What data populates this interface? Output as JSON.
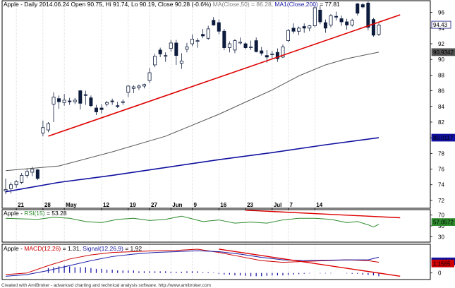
{
  "chart_data": [
    {
      "type": "candlestick",
      "title_parts": [
        {
          "text": "Apple - Daily 2014.06.24  Open 90.75, Hi 91.74, Lo 90.19, Close 90.28 (-0.6%)",
          "color": "#000000"
        },
        {
          "text": "MA(Close,50) = 86.28,",
          "color": "#808080"
        },
        {
          "text": "MA1(Close,200)",
          "color": "#1a1aa6"
        },
        {
          "text": "= 77.81",
          "color": "#000000"
        }
      ],
      "x_tick_labels": [
        {
          "i": 2,
          "label": "21"
        },
        {
          "i": 7,
          "label": "28"
        },
        {
          "i": 11,
          "label": "May"
        },
        {
          "i": 18,
          "label": "12"
        },
        {
          "i": 23,
          "label": "19"
        },
        {
          "i": 27,
          "label": "27"
        },
        {
          "i": 31,
          "label": "Jun"
        },
        {
          "i": 35,
          "label": "9"
        },
        {
          "i": 40,
          "label": "16"
        },
        {
          "i": 45,
          "label": "23"
        },
        {
          "i": 50,
          "label": "Jul"
        },
        {
          "i": 53,
          "label": "7"
        },
        {
          "i": 58,
          "label": "14"
        }
      ],
      "y_ticks": [
        72,
        74,
        76,
        78,
        80,
        82,
        84,
        86,
        88,
        90,
        92,
        94,
        96
      ],
      "ylim": [
        71,
        97.5
      ],
      "last_value_labels": [
        {
          "value": 94.43,
          "text": "94.43",
          "bg": "#ffffff",
          "border": "#1a1a80"
        },
        {
          "value": 90.9342,
          "text": "90.9342",
          "bg": "#555555",
          "fg": "#ffffff"
        },
        {
          "value": 80.0117,
          "text": "80.0117",
          "bg": "#1010a0",
          "fg": "#ffffff"
        }
      ],
      "candles": [
        {
          "o": 73.2,
          "h": 74.8,
          "l": 72.8,
          "c": 73.4
        },
        {
          "o": 73.5,
          "h": 74.3,
          "l": 72.9,
          "c": 74.0
        },
        {
          "o": 74.0,
          "h": 74.6,
          "l": 73.6,
          "c": 74.4
        },
        {
          "o": 74.3,
          "h": 75.5,
          "l": 74.1,
          "c": 75.2
        },
        {
          "o": 75.2,
          "h": 76.1,
          "l": 74.9,
          "c": 75.7
        },
        {
          "o": 75.6,
          "h": 76.3,
          "l": 75.1,
          "c": 76.0
        },
        {
          "o": 75.9,
          "h": 76.0,
          "l": 74.6,
          "c": 74.8
        },
        {
          "o": 80.6,
          "h": 82.2,
          "l": 80.2,
          "c": 81.3
        },
        {
          "o": 81.0,
          "h": 82.0,
          "l": 80.7,
          "c": 81.8
        },
        {
          "o": 84.3,
          "h": 85.8,
          "l": 82.0,
          "c": 85.2
        },
        {
          "o": 85.0,
          "h": 85.4,
          "l": 83.7,
          "c": 84.6
        },
        {
          "o": 84.5,
          "h": 85.6,
          "l": 84.1,
          "c": 84.8
        },
        {
          "o": 84.7,
          "h": 85.1,
          "l": 84.2,
          "c": 84.6
        },
        {
          "o": 84.6,
          "h": 85.1,
          "l": 84.3,
          "c": 84.8
        },
        {
          "o": 86.0,
          "h": 86.1,
          "l": 83.6,
          "c": 84.4
        },
        {
          "o": 85.5,
          "h": 86.0,
          "l": 84.2,
          "c": 85.4
        },
        {
          "o": 85.1,
          "h": 85.4,
          "l": 83.9,
          "c": 84.1
        },
        {
          "o": 83.8,
          "h": 84.2,
          "l": 82.9,
          "c": 83.3
        },
        {
          "o": 83.8,
          "h": 84.3,
          "l": 83.1,
          "c": 83.6
        },
        {
          "o": 84.3,
          "h": 84.7,
          "l": 84.0,
          "c": 84.5
        },
        {
          "o": 84.7,
          "h": 85.0,
          "l": 84.2,
          "c": 84.6
        },
        {
          "o": 84.1,
          "h": 84.6,
          "l": 83.8,
          "c": 84.0
        },
        {
          "o": 84.5,
          "h": 84.9,
          "l": 84.2,
          "c": 84.6
        },
        {
          "o": 85.8,
          "h": 86.7,
          "l": 85.2,
          "c": 86.6
        },
        {
          "o": 86.3,
          "h": 86.7,
          "l": 85.7,
          "c": 86.5
        },
        {
          "o": 86.4,
          "h": 86.8,
          "l": 86.1,
          "c": 86.6
        },
        {
          "o": 86.6,
          "h": 86.9,
          "l": 86.3,
          "c": 86.8
        },
        {
          "o": 87.3,
          "h": 88.9,
          "l": 87.0,
          "c": 88.3
        },
        {
          "o": 89.3,
          "h": 90.7,
          "l": 89.0,
          "c": 90.4
        },
        {
          "o": 91.2,
          "h": 91.5,
          "l": 90.3,
          "c": 90.7
        },
        {
          "o": 90.4,
          "h": 90.9,
          "l": 89.7,
          "c": 90.5
        },
        {
          "o": 91.4,
          "h": 92.5,
          "l": 91.0,
          "c": 92.1
        },
        {
          "o": 92.1,
          "h": 92.5,
          "l": 89.3,
          "c": 90.5
        },
        {
          "o": 89.5,
          "h": 90.8,
          "l": 88.8,
          "c": 89.8
        },
        {
          "o": 91.3,
          "h": 92.1,
          "l": 90.9,
          "c": 91.6
        },
        {
          "o": 92.0,
          "h": 93.2,
          "l": 91.7,
          "c": 92.6
        },
        {
          "o": 92.3,
          "h": 92.7,
          "l": 91.5,
          "c": 92.4
        },
        {
          "o": 93.2,
          "h": 93.9,
          "l": 92.7,
          "c": 93.0
        },
        {
          "o": 92.7,
          "h": 94.3,
          "l": 92.5,
          "c": 93.9
        },
        {
          "o": 95.0,
          "h": 95.4,
          "l": 94.3,
          "c": 94.4
        },
        {
          "o": 94.7,
          "h": 95.1,
          "l": 93.2,
          "c": 93.6
        },
        {
          "o": 93.6,
          "h": 93.9,
          "l": 91.2,
          "c": 91.5
        },
        {
          "o": 91.5,
          "h": 92.3,
          "l": 90.9,
          "c": 92.0
        },
        {
          "o": 91.2,
          "h": 92.6,
          "l": 90.8,
          "c": 92.4
        },
        {
          "o": 92.1,
          "h": 92.8,
          "l": 91.9,
          "c": 92.2
        },
        {
          "o": 92.0,
          "h": 92.2,
          "l": 91.3,
          "c": 91.5
        },
        {
          "o": 91.5,
          "h": 92.4,
          "l": 91.2,
          "c": 91.6
        },
        {
          "o": 92.4,
          "h": 92.8,
          "l": 90.9,
          "c": 91.0
        },
        {
          "o": 91.1,
          "h": 91.6,
          "l": 90.5,
          "c": 90.8
        },
        {
          "o": 90.5,
          "h": 91.2,
          "l": 89.6,
          "c": 90.3
        },
        {
          "o": 90.6,
          "h": 91.1,
          "l": 90.1,
          "c": 90.7
        },
        {
          "o": 90.9,
          "h": 91.4,
          "l": 89.7,
          "c": 90.1
        },
        {
          "o": 90.3,
          "h": 91.9,
          "l": 90.2,
          "c": 91.6
        },
        {
          "o": 92.4,
          "h": 93.9,
          "l": 92.2,
          "c": 93.7
        },
        {
          "o": 94.0,
          "h": 94.6,
          "l": 93.3,
          "c": 93.6
        },
        {
          "o": 93.6,
          "h": 94.2,
          "l": 93.1,
          "c": 94.0
        },
        {
          "o": 94.2,
          "h": 94.6,
          "l": 93.4,
          "c": 94.0
        },
        {
          "o": 94.0,
          "h": 94.4,
          "l": 93.6,
          "c": 94.3
        },
        {
          "o": 94.3,
          "h": 96.9,
          "l": 94.1,
          "c": 96.6
        },
        {
          "o": 96.3,
          "h": 96.8,
          "l": 94.5,
          "c": 94.8
        },
        {
          "o": 94.7,
          "h": 95.1,
          "l": 93.4,
          "c": 94.0
        },
        {
          "o": 94.4,
          "h": 95.8,
          "l": 94.1,
          "c": 95.6
        },
        {
          "o": 95.5,
          "h": 96.1,
          "l": 95.0,
          "c": 95.4
        },
        {
          "o": 95.2,
          "h": 95.6,
          "l": 94.3,
          "c": 94.8
        },
        {
          "o": 94.8,
          "h": 95.2,
          "l": 93.8,
          "c": 94.4
        },
        {
          "o": 94.4,
          "h": 95.2,
          "l": 94.2,
          "c": 95.0
        },
        {
          "o": 97.1,
          "h": 97.2,
          "l": 95.6,
          "c": 95.9
        },
        {
          "o": 97.0,
          "h": 97.2,
          "l": 96.5,
          "c": 96.7
        },
        {
          "o": 97.2,
          "h": 97.4,
          "l": 93.7,
          "c": 94.1
        },
        {
          "o": 95.1,
          "h": 95.3,
          "l": 92.9,
          "c": 93.1
        },
        {
          "o": 93.2,
          "h": 94.6,
          "l": 93.0,
          "c": 94.4
        }
      ],
      "ma50": [
        [
          0,
          75.8
        ],
        [
          10,
          76.4
        ],
        [
          20,
          78.2
        ],
        [
          30,
          80.2
        ],
        [
          40,
          83.0
        ],
        [
          50,
          86.1
        ],
        [
          55,
          87.9
        ],
        [
          60,
          89.3
        ],
        [
          64,
          90.1
        ],
        [
          70,
          90.93
        ]
      ],
      "ma200": [
        [
          0,
          73.1
        ],
        [
          10,
          74.3
        ],
        [
          20,
          75.2
        ],
        [
          30,
          76.2
        ],
        [
          40,
          77.2
        ],
        [
          50,
          78.1
        ],
        [
          60,
          79.1
        ],
        [
          70,
          80.01
        ]
      ],
      "trendline": [
        [
          8,
          80.2
        ],
        [
          74,
          95.7
        ]
      ]
    },
    {
      "type": "line",
      "title_parts": [
        {
          "text": "Apple -",
          "color": "#000000"
        },
        {
          "text": "RSI(15)",
          "color": "#2e8b2e"
        },
        {
          "text": "= 53.28",
          "color": "#000000"
        }
      ],
      "y_ticks": [
        30,
        50,
        70
      ],
      "ylim": [
        20,
        80
      ],
      "last_value_labels": [
        {
          "value": 57.0572,
          "text": "57.0572",
          "bg": "#2e8b2e",
          "fg": "#ffffff"
        }
      ],
      "series": [
        {
          "values": [
            [
              0,
              64
            ],
            [
              3,
              63
            ],
            [
              6,
              62
            ],
            [
              9,
              66
            ],
            [
              12,
              64
            ],
            [
              15,
              58
            ],
            [
              18,
              56
            ],
            [
              21,
              62
            ],
            [
              24,
              64
            ],
            [
              27,
              60
            ],
            [
              30,
              62
            ],
            [
              33,
              68
            ],
            [
              35,
              63
            ],
            [
              37,
              58
            ],
            [
              40,
              61
            ],
            [
              43,
              55
            ],
            [
              46,
              57
            ],
            [
              49,
              55
            ],
            [
              52,
              61
            ],
            [
              55,
              64
            ],
            [
              58,
              64
            ],
            [
              61,
              62
            ],
            [
              64,
              56
            ],
            [
              66,
              58
            ],
            [
              68,
              52
            ],
            [
              69,
              48
            ],
            [
              70,
              53
            ]
          ]
        }
      ],
      "trendline": [
        [
          45,
          79
        ],
        [
          74,
          65
        ]
      ]
    },
    {
      "type": "line",
      "title_parts": [
        {
          "text": "Apple -",
          "color": "#000000"
        },
        {
          "text": "MACD(12,26)",
          "color": "#cc0000"
        },
        {
          "text": "= 1.31,",
          "color": "#000000"
        },
        {
          "text": "Signal(12,26,9)",
          "color": "#1a1aa6"
        },
        {
          "text": "= 1.92",
          "color": "#000000"
        }
      ],
      "y_ticks": [
        0
      ],
      "ylim": [
        -0.8,
        3.5
      ],
      "last_value_labels": [
        {
          "value": 1.41212,
          "text": "1.41212",
          "bg": "#1010a0",
          "fg": "#ffffff"
        },
        {
          "value": 1.1565,
          "text": "1.1565",
          "bg": "#cc0000",
          "fg": "#ffffff"
        }
      ],
      "series": [
        {
          "color": "#cc0000",
          "values": [
            [
              0,
              -0.2
            ],
            [
              4,
              0.0
            ],
            [
              8,
              0.9
            ],
            [
              12,
              1.7
            ],
            [
              16,
              2.2
            ],
            [
              20,
              2.5
            ],
            [
              24,
              2.6
            ],
            [
              28,
              2.7
            ],
            [
              32,
              2.75
            ],
            [
              36,
              2.9
            ],
            [
              40,
              2.5
            ],
            [
              44,
              2.0
            ],
            [
              48,
              1.5
            ],
            [
              52,
              1.3
            ],
            [
              56,
              1.4
            ],
            [
              60,
              1.5
            ],
            [
              64,
              1.6
            ],
            [
              68,
              1.5
            ],
            [
              70,
              1.31
            ]
          ]
        },
        {
          "color": "#1a1aa6",
          "values": [
            [
              0,
              -0.4
            ],
            [
              4,
              -0.2
            ],
            [
              8,
              0.3
            ],
            [
              12,
              0.9
            ],
            [
              16,
              1.5
            ],
            [
              20,
              2.0
            ],
            [
              24,
              2.3
            ],
            [
              28,
              2.5
            ],
            [
              32,
              2.6
            ],
            [
              36,
              2.7
            ],
            [
              40,
              2.6
            ],
            [
              44,
              2.3
            ],
            [
              48,
              1.9
            ],
            [
              52,
              1.6
            ],
            [
              56,
              1.5
            ],
            [
              60,
              1.55
            ],
            [
              64,
              1.6
            ],
            [
              68,
              1.6
            ],
            [
              70,
              1.92
            ]
          ]
        }
      ],
      "histogram": [
        [
          8,
          0.6
        ],
        [
          9,
          0.7
        ],
        [
          10,
          0.8
        ],
        [
          11,
          0.9
        ],
        [
          12,
          0.8
        ],
        [
          13,
          0.7
        ],
        [
          14,
          0.7
        ],
        [
          15,
          0.7
        ],
        [
          16,
          0.6
        ],
        [
          17,
          0.5
        ],
        [
          18,
          0.5
        ],
        [
          19,
          0.4
        ],
        [
          20,
          0.4
        ],
        [
          21,
          0.3
        ],
        [
          22,
          0.3
        ],
        [
          23,
          0.3
        ],
        [
          24,
          0.3
        ],
        [
          25,
          0.2
        ],
        [
          26,
          0.2
        ],
        [
          27,
          0.2
        ],
        [
          28,
          0.2
        ],
        [
          29,
          0.2
        ],
        [
          30,
          0.2
        ],
        [
          31,
          0.15
        ],
        [
          32,
          0.15
        ],
        [
          33,
          0.15
        ],
        [
          34,
          0.2
        ],
        [
          35,
          0.2
        ],
        [
          36,
          0.2
        ],
        [
          37,
          0.1
        ],
        [
          38,
          0.1
        ],
        [
          39,
          0.05
        ],
        [
          40,
          -0.1
        ],
        [
          41,
          -0.2
        ],
        [
          42,
          -0.2
        ],
        [
          43,
          -0.3
        ],
        [
          44,
          -0.3
        ],
        [
          45,
          -0.35
        ],
        [
          46,
          -0.4
        ],
        [
          47,
          -0.4
        ],
        [
          48,
          -0.4
        ],
        [
          49,
          -0.35
        ],
        [
          50,
          -0.3
        ],
        [
          51,
          -0.3
        ],
        [
          52,
          -0.3
        ],
        [
          53,
          -0.25
        ],
        [
          54,
          -0.2
        ],
        [
          55,
          -0.15
        ],
        [
          56,
          -0.1
        ],
        [
          57,
          -0.05
        ],
        [
          58,
          0.0
        ],
        [
          59,
          -0.05
        ],
        [
          60,
          -0.05
        ],
        [
          61,
          -0.05
        ],
        [
          62,
          0.0
        ],
        [
          63,
          0.0
        ],
        [
          64,
          -0.05
        ],
        [
          65,
          -0.1
        ],
        [
          66,
          -0.1
        ],
        [
          67,
          -0.2
        ],
        [
          68,
          -0.25
        ],
        [
          69,
          -0.3
        ],
        [
          70,
          -0.4
        ]
      ],
      "trendline": [
        [
          40,
          2.9
        ],
        [
          74,
          -0.4
        ]
      ]
    }
  ],
  "footer": "Created with AmiBroker - advanced charting and technical analysis software. http://www.amibroker.com"
}
